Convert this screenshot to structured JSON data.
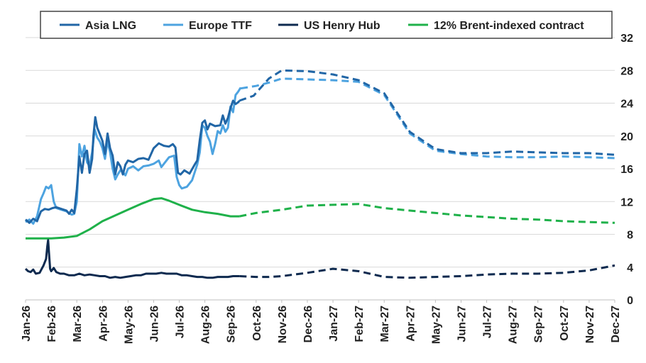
{
  "chart_data": {
    "type": "line",
    "title": "",
    "xlabel": "",
    "ylabel": "",
    "ylim": [
      0,
      32
    ],
    "y_ticks": [
      "0",
      "4",
      "8",
      "12",
      "16",
      "20",
      "24",
      "28",
      "32"
    ],
    "y_axis_side": "right",
    "grid": "horizontal",
    "legend_position": "top",
    "x_tick_labels": [
      "Jan-26",
      "Feb-26",
      "Mar-26",
      "Apr-26",
      "May-26",
      "Jun-26",
      "Jul-26",
      "Aug-26",
      "Sep-26",
      "Oct-26",
      "Nov-26",
      "Dec-26",
      "Jan-27",
      "Feb-27",
      "Mar-27",
      "Apr-27",
      "May-27",
      "Jun-27",
      "Jul-27",
      "Aug-27",
      "Sep-27",
      "Oct-27",
      "Nov-27",
      "Dec-27"
    ],
    "x_unit": "months since Jan-26",
    "series": [
      {
        "name": "Asia LNG",
        "color": "#2166a6",
        "observed": [
          [
            0,
            9.8
          ],
          [
            0.15,
            9.4
          ],
          [
            0.3,
            9.9
          ],
          [
            0.45,
            9.6
          ],
          [
            0.6,
            10.8
          ],
          [
            0.75,
            11.1
          ],
          [
            0.9,
            11.0
          ],
          [
            1.05,
            11.2
          ],
          [
            1.2,
            11.3
          ],
          [
            1.4,
            11.1
          ],
          [
            1.6,
            10.9
          ],
          [
            1.7,
            10.5
          ],
          [
            1.8,
            11.0
          ],
          [
            1.9,
            10.6
          ],
          [
            2.0,
            13.5
          ],
          [
            2.1,
            17.5
          ],
          [
            2.2,
            15.5
          ],
          [
            2.3,
            17.8
          ],
          [
            2.4,
            18.2
          ],
          [
            2.5,
            15.5
          ],
          [
            2.6,
            17.2
          ],
          [
            2.65,
            20.0
          ],
          [
            2.72,
            22.3
          ],
          [
            2.8,
            21.0
          ],
          [
            2.9,
            20.2
          ],
          [
            3.0,
            19.4
          ],
          [
            3.1,
            17.8
          ],
          [
            3.2,
            20.3
          ],
          [
            3.3,
            18.5
          ],
          [
            3.4,
            17.6
          ],
          [
            3.5,
            15.3
          ],
          [
            3.6,
            16.8
          ],
          [
            3.7,
            16.3
          ],
          [
            3.8,
            15.3
          ],
          [
            3.9,
            16.5
          ],
          [
            4.0,
            17.0
          ],
          [
            4.2,
            16.8
          ],
          [
            4.4,
            17.2
          ],
          [
            4.6,
            17.3
          ],
          [
            4.8,
            17.1
          ],
          [
            5.0,
            18.5
          ],
          [
            5.2,
            19.1
          ],
          [
            5.4,
            18.8
          ],
          [
            5.6,
            18.7
          ],
          [
            5.75,
            19.0
          ],
          [
            5.85,
            18.6
          ],
          [
            5.95,
            15.5
          ],
          [
            6.05,
            15.3
          ],
          [
            6.2,
            15.8
          ],
          [
            6.4,
            15.4
          ],
          [
            6.6,
            16.5
          ],
          [
            6.7,
            17.0
          ],
          [
            6.8,
            19.5
          ],
          [
            6.9,
            21.6
          ],
          [
            7.0,
            21.9
          ],
          [
            7.1,
            20.8
          ],
          [
            7.2,
            21.5
          ],
          [
            7.4,
            21.2
          ],
          [
            7.6,
            21.3
          ],
          [
            7.7,
            22.5
          ],
          [
            7.8,
            21.5
          ],
          [
            7.9,
            22.2
          ],
          [
            8.0,
            23.4
          ],
          [
            8.1,
            24.3
          ],
          [
            8.2,
            23.9
          ],
          [
            8.3,
            24.1
          ],
          [
            8.35,
            24.3
          ]
        ],
        "forecast": [
          [
            8.35,
            24.3
          ],
          [
            8.9,
            24.9
          ],
          [
            9.5,
            27.0
          ],
          [
            10.0,
            28.0
          ],
          [
            11.0,
            27.9
          ],
          [
            12.0,
            27.5
          ],
          [
            13.0,
            26.8
          ],
          [
            14.0,
            25.2
          ],
          [
            15.0,
            20.5
          ],
          [
            16.0,
            18.4
          ],
          [
            17.0,
            17.9
          ],
          [
            18.0,
            17.9
          ],
          [
            19.0,
            18.1
          ],
          [
            20.0,
            18.0
          ],
          [
            21.0,
            17.9
          ],
          [
            22.0,
            17.9
          ],
          [
            23.0,
            17.7
          ]
        ]
      },
      {
        "name": "Europe TTF",
        "color": "#4da3e0",
        "observed": [
          [
            0,
            9.5
          ],
          [
            0.15,
            9.8
          ],
          [
            0.3,
            9.3
          ],
          [
            0.45,
            10.2
          ],
          [
            0.6,
            12.3
          ],
          [
            0.7,
            13.0
          ],
          [
            0.8,
            13.8
          ],
          [
            0.9,
            13.6
          ],
          [
            1.0,
            14.0
          ],
          [
            1.1,
            12.0
          ],
          [
            1.2,
            11.2
          ],
          [
            1.4,
            11.0
          ],
          [
            1.6,
            10.8
          ],
          [
            1.8,
            10.4
          ],
          [
            1.9,
            10.5
          ],
          [
            2.0,
            12.0
          ],
          [
            2.1,
            19.0
          ],
          [
            2.2,
            17.5
          ],
          [
            2.3,
            18.8
          ],
          [
            2.4,
            16.8
          ],
          [
            2.5,
            16.3
          ],
          [
            2.6,
            18.0
          ],
          [
            2.7,
            20.8
          ],
          [
            2.8,
            19.8
          ],
          [
            2.9,
            19.3
          ],
          [
            3.0,
            18.5
          ],
          [
            3.1,
            17.2
          ],
          [
            3.2,
            19.4
          ],
          [
            3.3,
            18.0
          ],
          [
            3.4,
            16.0
          ],
          [
            3.5,
            14.7
          ],
          [
            3.6,
            15.3
          ],
          [
            3.7,
            15.8
          ],
          [
            3.8,
            15.6
          ],
          [
            3.9,
            15.2
          ],
          [
            4.0,
            16.0
          ],
          [
            4.2,
            16.3
          ],
          [
            4.4,
            15.8
          ],
          [
            4.6,
            16.3
          ],
          [
            4.8,
            16.4
          ],
          [
            5.0,
            16.6
          ],
          [
            5.2,
            17.0
          ],
          [
            5.3,
            16.2
          ],
          [
            5.4,
            16.6
          ],
          [
            5.6,
            17.4
          ],
          [
            5.8,
            17.6
          ],
          [
            5.9,
            15.0
          ],
          [
            6.0,
            14.0
          ],
          [
            6.1,
            13.6
          ],
          [
            6.3,
            13.8
          ],
          [
            6.5,
            14.6
          ],
          [
            6.7,
            16.5
          ],
          [
            6.8,
            18.0
          ],
          [
            6.9,
            21.3
          ],
          [
            7.0,
            21.0
          ],
          [
            7.1,
            20.0
          ],
          [
            7.2,
            19.3
          ],
          [
            7.3,
            17.8
          ],
          [
            7.4,
            19.0
          ],
          [
            7.5,
            20.6
          ],
          [
            7.6,
            20.3
          ],
          [
            7.7,
            21.3
          ],
          [
            7.8,
            20.5
          ],
          [
            7.9,
            21.0
          ],
          [
            8.0,
            23.6
          ],
          [
            8.1,
            22.9
          ],
          [
            8.2,
            25.0
          ],
          [
            8.3,
            25.4
          ],
          [
            8.4,
            25.9
          ]
        ],
        "forecast": [
          [
            8.4,
            25.8
          ],
          [
            9.0,
            26.1
          ],
          [
            9.5,
            26.5
          ],
          [
            10.0,
            27.0
          ],
          [
            11.0,
            26.9
          ],
          [
            12.0,
            26.8
          ],
          [
            13.0,
            26.6
          ],
          [
            14.0,
            25.0
          ],
          [
            15.0,
            20.3
          ],
          [
            16.0,
            18.2
          ],
          [
            17.0,
            17.8
          ],
          [
            18.0,
            17.5
          ],
          [
            19.0,
            17.4
          ],
          [
            20.0,
            17.4
          ],
          [
            21.0,
            17.5
          ],
          [
            22.0,
            17.4
          ],
          [
            23.0,
            17.3
          ]
        ]
      },
      {
        "name": "US Henry Hub",
        "color": "#0e2a4f",
        "observed": [
          [
            0,
            3.8
          ],
          [
            0.1,
            3.5
          ],
          [
            0.2,
            3.4
          ],
          [
            0.3,
            3.7
          ],
          [
            0.4,
            3.2
          ],
          [
            0.55,
            3.3
          ],
          [
            0.7,
            4.2
          ],
          [
            0.8,
            5.0
          ],
          [
            0.85,
            6.6
          ],
          [
            0.88,
            7.3
          ],
          [
            0.92,
            5.5
          ],
          [
            0.96,
            3.8
          ],
          [
            1.0,
            3.5
          ],
          [
            1.1,
            3.9
          ],
          [
            1.2,
            3.4
          ],
          [
            1.35,
            3.2
          ],
          [
            1.5,
            3.2
          ],
          [
            1.7,
            3.0
          ],
          [
            1.9,
            3.0
          ],
          [
            2.1,
            3.2
          ],
          [
            2.3,
            3.0
          ],
          [
            2.5,
            3.1
          ],
          [
            2.7,
            3.0
          ],
          [
            2.9,
            2.9
          ],
          [
            3.1,
            2.9
          ],
          [
            3.3,
            2.7
          ],
          [
            3.5,
            2.8
          ],
          [
            3.7,
            2.7
          ],
          [
            3.9,
            2.8
          ],
          [
            4.1,
            2.9
          ],
          [
            4.3,
            3.0
          ],
          [
            4.5,
            3.0
          ],
          [
            4.7,
            3.2
          ],
          [
            4.9,
            3.2
          ],
          [
            5.1,
            3.2
          ],
          [
            5.3,
            3.3
          ],
          [
            5.5,
            3.2
          ],
          [
            5.7,
            3.2
          ],
          [
            5.9,
            3.2
          ],
          [
            6.1,
            3.0
          ],
          [
            6.3,
            3.0
          ],
          [
            6.5,
            2.9
          ],
          [
            6.7,
            2.8
          ],
          [
            6.9,
            2.8
          ],
          [
            7.1,
            2.7
          ],
          [
            7.3,
            2.7
          ],
          [
            7.5,
            2.8
          ],
          [
            7.7,
            2.8
          ],
          [
            7.9,
            2.8
          ],
          [
            8.1,
            2.9
          ],
          [
            8.35,
            2.9
          ]
        ],
        "forecast": [
          [
            8.35,
            2.9
          ],
          [
            9.0,
            2.8
          ],
          [
            9.5,
            2.8
          ],
          [
            10.0,
            2.9
          ],
          [
            11.0,
            3.3
          ],
          [
            12.0,
            3.8
          ],
          [
            13.0,
            3.5
          ],
          [
            14.0,
            2.8
          ],
          [
            15.0,
            2.7
          ],
          [
            16.0,
            2.8
          ],
          [
            17.0,
            2.9
          ],
          [
            18.0,
            3.1
          ],
          [
            19.0,
            3.2
          ],
          [
            20.0,
            3.2
          ],
          [
            21.0,
            3.3
          ],
          [
            22.0,
            3.6
          ],
          [
            23.0,
            4.2
          ]
        ]
      },
      {
        "name": "12% Brent-indexed contract",
        "color": "#1fb14a",
        "observed": [
          [
            0,
            7.5
          ],
          [
            0.5,
            7.5
          ],
          [
            1.0,
            7.5
          ],
          [
            1.5,
            7.6
          ],
          [
            2.0,
            7.8
          ],
          [
            2.5,
            8.6
          ],
          [
            3.0,
            9.6
          ],
          [
            3.5,
            10.3
          ],
          [
            4.0,
            11.0
          ],
          [
            4.5,
            11.7
          ],
          [
            5.0,
            12.3
          ],
          [
            5.3,
            12.4
          ],
          [
            5.6,
            12.1
          ],
          [
            6.0,
            11.6
          ],
          [
            6.5,
            11.0
          ],
          [
            7.0,
            10.7
          ],
          [
            7.5,
            10.5
          ],
          [
            8.0,
            10.2
          ],
          [
            8.35,
            10.2
          ]
        ],
        "forecast": [
          [
            8.35,
            10.2
          ],
          [
            9.0,
            10.6
          ],
          [
            10.0,
            11.0
          ],
          [
            11.0,
            11.5
          ],
          [
            12.0,
            11.6
          ],
          [
            13.0,
            11.7
          ],
          [
            14.0,
            11.2
          ],
          [
            15.0,
            10.9
          ],
          [
            16.0,
            10.6
          ],
          [
            17.0,
            10.3
          ],
          [
            18.0,
            10.1
          ],
          [
            19.0,
            9.9
          ],
          [
            20.0,
            9.8
          ],
          [
            21.0,
            9.6
          ],
          [
            22.0,
            9.5
          ],
          [
            23.0,
            9.4
          ]
        ]
      }
    ]
  }
}
